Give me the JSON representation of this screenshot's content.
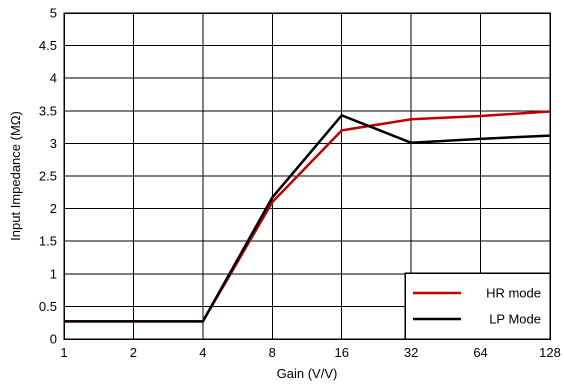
{
  "chart_data": {
    "type": "line",
    "x": [
      1,
      2,
      4,
      8,
      16,
      32,
      64,
      128
    ],
    "categories": [
      "1",
      "2",
      "4",
      "8",
      "16",
      "32",
      "64",
      "128"
    ],
    "x_scale": "log2",
    "xlabel": "Gain (V/V)",
    "ylabel": "Input Impedance (MΩ)",
    "ylim": [
      0,
      5
    ],
    "yticks": [
      "0",
      "0.5",
      "1",
      "1.5",
      "2",
      "2.5",
      "3",
      "3.5",
      "4",
      "4.5",
      "5"
    ],
    "grid": true,
    "legend_position": "bottom-right",
    "series": [
      {
        "name": "HR mode",
        "color": "#c00000",
        "values": [
          0.27,
          0.27,
          0.27,
          2.1,
          3.2,
          3.37,
          3.42,
          3.49
        ]
      },
      {
        "name": "LP Mode",
        "color": "#000000",
        "values": [
          0.27,
          0.27,
          0.27,
          2.17,
          3.43,
          3.01,
          3.07,
          3.12
        ]
      }
    ]
  }
}
